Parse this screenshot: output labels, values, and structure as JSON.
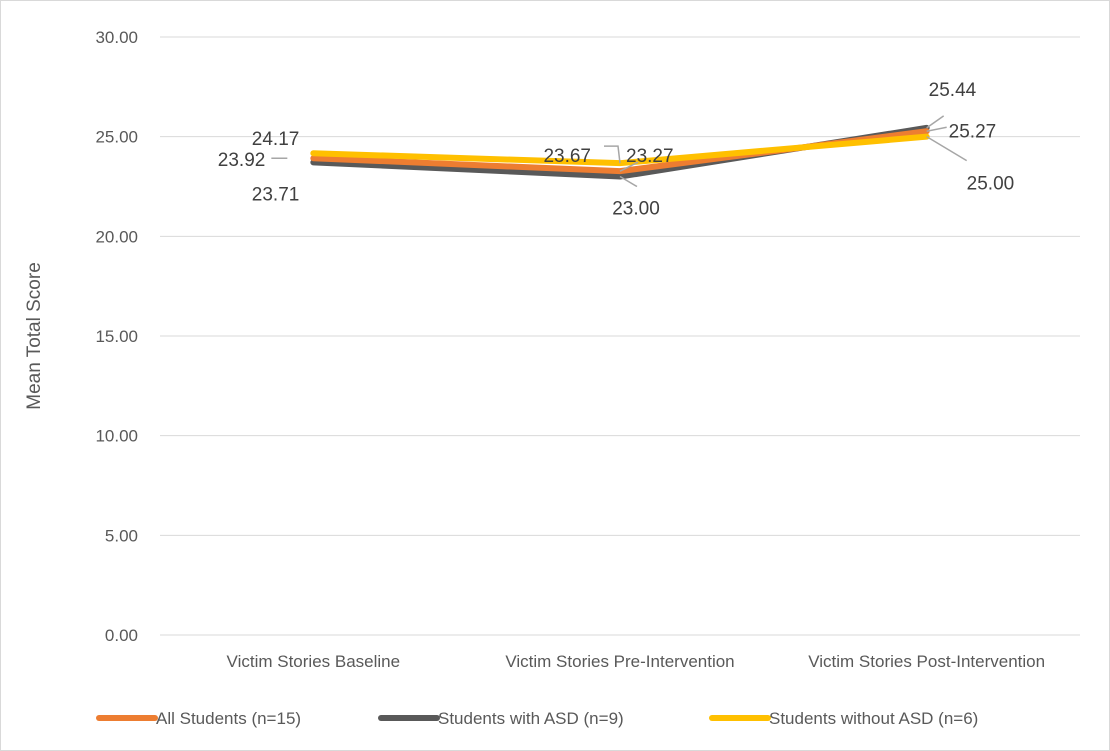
{
  "chart_data": {
    "type": "line",
    "title": "",
    "xlabel": "",
    "ylabel": "Mean Total Score",
    "ylim": [
      0,
      30
    ],
    "yticks": [
      "0.00",
      "5.00",
      "10.00",
      "15.00",
      "20.00",
      "25.00",
      "30.00"
    ],
    "categories": [
      "Victim Stories Baseline",
      "Victim Stories Pre-Intervention",
      "Victim Stories Post-Intervention"
    ],
    "grid": true,
    "legend_position": "bottom",
    "series": [
      {
        "name": "All Students (n=15)",
        "color": "#ED7D31",
        "values": [
          23.92,
          23.27,
          25.27
        ],
        "labels": [
          "23.92",
          "23.27",
          "25.27"
        ]
      },
      {
        "name": "Students with ASD (n=9)",
        "color": "#595959",
        "values": [
          23.71,
          23.0,
          25.44
        ],
        "labels": [
          "23.71",
          "23.00",
          "25.44"
        ]
      },
      {
        "name": "Students without ASD (n=6)",
        "color": "#FFC000",
        "values": [
          24.17,
          23.67,
          25.0
        ],
        "labels": [
          "24.17",
          "23.67",
          "25.00"
        ]
      }
    ]
  }
}
